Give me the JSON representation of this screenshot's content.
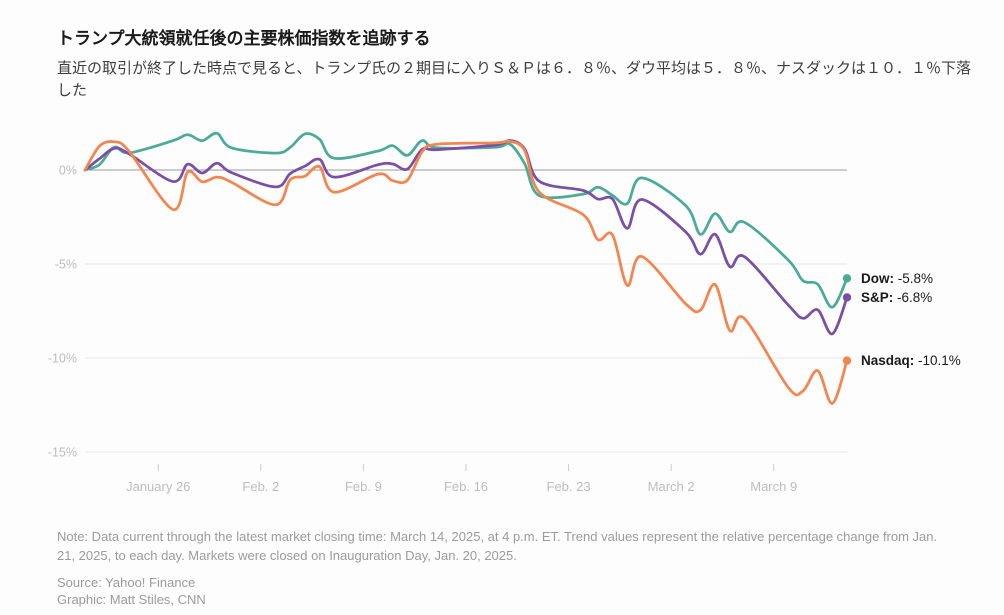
{
  "header": {
    "title": "トランプ大統領就任後の主要株価指数を追跡する",
    "subtitle": "直近の取引が終了した時点で見ると、トランプ氏の２期目に入りＳ＆Ｐは６．８％、ダウ平均は５．８％、ナスダックは１０．１％下落した"
  },
  "chart_data": {
    "type": "line",
    "title": "トランプ大統領就任後の主要株価指数を追跡する",
    "ylabel": "Relative percentage change from Jan. 21, 2025",
    "ylim": [
      -15,
      2.5
    ],
    "grid": true,
    "legend_position": "end-of-line-labels",
    "x_dates": [
      "Jan 21",
      "Jan 22",
      "Jan 23",
      "Jan 24",
      "Jan 27",
      "Jan 28",
      "Jan 29",
      "Jan 30",
      "Jan 31",
      "Feb 3",
      "Feb 4",
      "Feb 5",
      "Feb 6",
      "Feb 7",
      "Feb 10",
      "Feb 11",
      "Feb 12",
      "Feb 13",
      "Feb 14",
      "Feb 18",
      "Feb 19",
      "Feb 20",
      "Feb 21",
      "Feb 24",
      "Feb 25",
      "Feb 26",
      "Feb 27",
      "Feb 28",
      "Mar 3",
      "Mar 4",
      "Mar 5",
      "Mar 6",
      "Mar 7",
      "Mar 10",
      "Mar 11",
      "Mar 12",
      "Mar 13",
      "Mar 14"
    ],
    "x_day_offsets": [
      0,
      1,
      2,
      3,
      6,
      7,
      8,
      9,
      10,
      13,
      14,
      15,
      16,
      17,
      20,
      21,
      22,
      23,
      24,
      28,
      29,
      30,
      31,
      34,
      35,
      36,
      37,
      38,
      41,
      42,
      43,
      44,
      45,
      48,
      49,
      50,
      51,
      52
    ],
    "series": [
      {
        "name": "Dow",
        "color": "#4aab99",
        "end_label": "Dow:",
        "end_value": "-5.8%",
        "values": [
          0,
          0.3,
          1.22,
          0.91,
          1.56,
          1.87,
          1.56,
          1.95,
          1.18,
          0.9,
          1.2,
          1.92,
          1.64,
          0.63,
          1.01,
          1.29,
          0.78,
          1.56,
          1.18,
          1.21,
          1.37,
          0.34,
          -1.36,
          -1.28,
          -0.92,
          -1.35,
          -1.79,
          -0.42,
          -1.9,
          -3.42,
          -2.32,
          -3.29,
          -2.78,
          -4.8,
          -5.89,
          -6.08,
          -7.3,
          -5.76
        ]
      },
      {
        "name": "S&P",
        "color": "#7a4fa6",
        "end_label": "S&P:",
        "end_value": "-6.8%",
        "values": [
          0,
          0.61,
          1.15,
          0.86,
          -0.61,
          0.31,
          -0.16,
          0.36,
          -0.14,
          -0.9,
          -0.19,
          0.2,
          0.57,
          -0.38,
          0.28,
          0.32,
          0.05,
          1.09,
          1.08,
          1.33,
          1.57,
          1.13,
          -0.6,
          -1.09,
          -1.55,
          -1.54,
          -3.1,
          -1.57,
          -3.3,
          -4.48,
          -3.42,
          -5.14,
          -4.61,
          -7.19,
          -7.89,
          -7.44,
          -8.72,
          -6.78
        ]
      },
      {
        "name": "Nasdaq",
        "color": "#f5854f",
        "end_label": "Nasdaq:",
        "end_value": "-10.1%",
        "values": [
          0,
          1.28,
          1.5,
          1.0,
          -2.1,
          -0.12,
          -0.63,
          -0.38,
          -0.65,
          -1.85,
          -0.52,
          -0.33,
          0.18,
          -1.18,
          -0.22,
          -0.57,
          -0.54,
          0.96,
          1.37,
          1.44,
          1.52,
          1.04,
          -1.18,
          -2.38,
          -3.7,
          -3.45,
          -6.14,
          -4.6,
          -7.12,
          -7.45,
          -6.09,
          -8.54,
          -7.9,
          -11.58,
          -11.75,
          -10.67,
          -12.42,
          -10.14
        ]
      }
    ],
    "y_ticks": [
      {
        "value": 0,
        "label": "0%"
      },
      {
        "value": -5,
        "label": "-5%"
      },
      {
        "value": -10,
        "label": "-10%"
      },
      {
        "value": -15,
        "label": "-15%"
      }
    ],
    "x_ticks": [
      {
        "day": 5,
        "label": "January 26"
      },
      {
        "day": 12,
        "label": "Feb. 2"
      },
      {
        "day": 19,
        "label": "Feb. 9"
      },
      {
        "day": 26,
        "label": "Feb. 16"
      },
      {
        "day": 33,
        "label": "Feb. 23"
      },
      {
        "day": 40,
        "label": "March 2"
      },
      {
        "day": 47,
        "label": "March 9"
      }
    ],
    "colors": {
      "baseline": "#9a9a9a",
      "grid": "#e8e8e8",
      "axis_label": "#bdbdbd",
      "tick_mark": "#cccccc",
      "end_label_text": "#1a1a1a"
    }
  },
  "footer": {
    "note": "Note: Data current through the latest market closing time: March 14, 2025, at 4 p.m. ET. Trend values represent the relative percentage change from Jan. 21, 2025, to each day. Markets were closed on Inauguration Day, Jan. 20, 2025.",
    "source": "Source: Yahoo! Finance",
    "credit": "Graphic: Matt Stiles, CNN"
  }
}
